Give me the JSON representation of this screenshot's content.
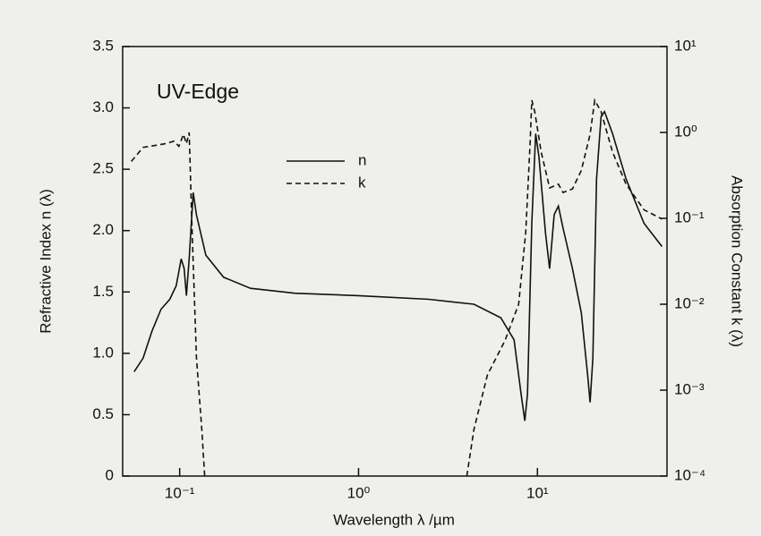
{
  "chart_data": {
    "type": "line",
    "annotation": "UV-Edge",
    "x_label": "Wavelength λ /µm",
    "y_label": "Refractive Index n (λ)",
    "y2_label": "Absorption Constant k (λ)",
    "xscale": "log",
    "y2scale": "log",
    "xlim": [
      0.048,
      53
    ],
    "xticks": [
      {
        "value": 0.1,
        "label": "10⁻¹"
      },
      {
        "value": 1,
        "label": "10⁰"
      },
      {
        "value": 10,
        "label": "10¹"
      }
    ],
    "ylim": [
      0,
      3.5
    ],
    "yticks": [
      0,
      {
        "value": 0.5,
        "label": "0.5"
      },
      {
        "value": 1,
        "label": "1.0"
      },
      {
        "value": 1.5,
        "label": "1.5"
      },
      {
        "value": 2,
        "label": "2.0"
      },
      {
        "value": 2.5,
        "label": "2.5"
      },
      {
        "value": 3,
        "label": "3.0"
      },
      {
        "value": 3.5,
        "label": "3.5"
      }
    ],
    "y2lim": [
      0.0001,
      10
    ],
    "y2ticks": [
      {
        "value": 0.0001,
        "label": "10⁻⁴"
      },
      {
        "value": 0.001,
        "label": "10⁻³"
      },
      {
        "value": 0.01,
        "label": "10⁻²"
      },
      {
        "value": 0.1,
        "label": "10⁻¹"
      },
      {
        "value": 1,
        "label": "10⁰"
      },
      {
        "value": 10,
        "label": "10¹"
      }
    ],
    "series": [
      {
        "name": "n",
        "color": "#111111",
        "dash": "solid",
        "x": [
          0.0556,
          0.0624,
          0.07,
          0.0787,
          0.088,
          0.0956,
          0.102,
          0.106,
          0.109,
          0.113,
          0.119,
          0.124,
          0.14,
          0.176,
          0.249,
          0.441,
          1.0,
          2.48,
          4.42,
          6.24,
          7.4,
          8.1,
          8.5,
          8.8,
          9.3,
          9.77,
          10.2,
          11.1,
          11.7,
          12.4,
          13.1,
          13.9,
          15.7,
          17.6,
          19.1,
          19.7,
          20.4,
          21.4,
          22.7,
          23.7,
          26.3,
          31.3,
          39.4,
          49.7
        ],
        "values": [
          0.85,
          0.96,
          1.18,
          1.36,
          1.44,
          1.55,
          1.77,
          1.69,
          1.47,
          1.77,
          2.31,
          2.13,
          1.8,
          1.62,
          1.53,
          1.49,
          1.47,
          1.44,
          1.4,
          1.29,
          1.11,
          0.67,
          0.45,
          0.67,
          2.06,
          2.79,
          2.6,
          1.98,
          1.69,
          2.13,
          2.2,
          2.02,
          1.69,
          1.33,
          0.82,
          0.6,
          0.96,
          2.42,
          2.93,
          2.97,
          2.79,
          2.42,
          2.06,
          1.87
        ]
      },
      {
        "name": "k",
        "color": "#111111",
        "dash": "dashed",
        "axis": "y2",
        "x": [
          0.0537,
          0.0624,
          0.074,
          0.083,
          0.093,
          0.099,
          0.105,
          0.109,
          0.113,
          0.117,
          0.124,
          0.133,
          0.138,
          1.0,
          4.03,
          4.42,
          5.25,
          6.6,
          7.85,
          8.6,
          9.1,
          9.3,
          9.66,
          10.5,
          11.7,
          13.1,
          13.9,
          15.7,
          17.6,
          19.7,
          20.9,
          22.7,
          26.3,
          31.3,
          39.4,
          49.7
        ],
        "values": [
          0.46,
          0.67,
          0.71,
          0.74,
          0.79,
          0.69,
          0.95,
          0.74,
          1.0,
          0.087,
          0.0024,
          0.00035,
          0.0001,
          null,
          0.0001,
          0.00035,
          0.0015,
          0.0038,
          0.01,
          0.068,
          0.75,
          2.37,
          1.74,
          0.59,
          0.226,
          0.25,
          0.2,
          0.22,
          0.36,
          0.95,
          2.37,
          1.74,
          0.59,
          0.25,
          0.126,
          0.098
        ]
      }
    ]
  }
}
